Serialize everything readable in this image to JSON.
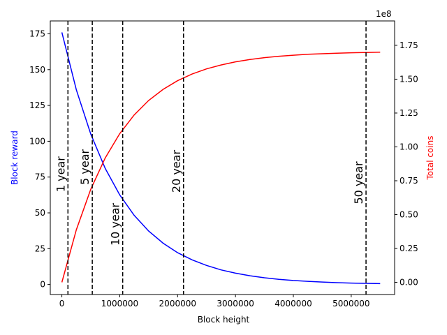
{
  "chart_data": {
    "type": "line",
    "xlabel": "Block height",
    "ylabel_left": "Block reward",
    "ylabel_right": "Total coins",
    "right_axis_multiplier": "1e8",
    "xlim": [
      -200000,
      5750000
    ],
    "ylim_left": [
      -7,
      184
    ],
    "ylim_right": [
      -9000000,
      193000000
    ],
    "x_ticks": [
      0,
      1000000,
      2000000,
      3000000,
      4000000,
      5000000
    ],
    "x_tick_labels": [
      "0",
      "1000000",
      "2000000",
      "3000000",
      "4000000",
      "5000000"
    ],
    "y_left_ticks": [
      0,
      25,
      50,
      75,
      100,
      125,
      150,
      175
    ],
    "y_left_tick_labels": [
      "0",
      "25",
      "50",
      "75",
      "100",
      "125",
      "150",
      "175"
    ],
    "y_right_ticks": [
      0,
      25000000,
      50000000,
      75000000,
      100000000,
      125000000,
      150000000,
      175000000
    ],
    "y_right_tick_labels": [
      "0.00",
      "0.25",
      "0.50",
      "0.75",
      "1.00",
      "1.25",
      "1.50",
      "1.75"
    ],
    "grid": false,
    "colors": {
      "reward": "#0000ff",
      "total": "#ff0000",
      "markers": "#000000"
    },
    "series": [
      {
        "axis": "left",
        "x": [
          0,
          250000,
          500000,
          750000,
          1000000,
          1250000,
          1500000,
          1750000,
          2000000,
          2250000,
          2500000,
          2750000,
          3000000,
          3250000,
          3500000,
          3750000,
          4000000,
          4250000,
          4500000,
          4750000,
          5000000,
          5250000,
          5500000
        ],
        "values": [
          176,
          135.9,
          104.9,
          81.0,
          62.6,
          48.3,
          37.3,
          28.8,
          22.2,
          17.2,
          13.3,
          10.2,
          7.9,
          6.1,
          4.7,
          3.6,
          2.8,
          2.2,
          1.7,
          1.3,
          1.0,
          0.8,
          0.6
        ]
      },
      {
        "axis": "right",
        "x": [
          0,
          250000,
          500000,
          750000,
          1000000,
          1250000,
          1500000,
          1750000,
          2000000,
          2250000,
          2500000,
          2750000,
          3000000,
          3250000,
          3500000,
          3750000,
          4000000,
          4250000,
          4500000,
          4750000,
          5000000,
          5250000,
          5500000
        ],
        "values": [
          0,
          38800000,
          68800000,
          91900000,
          109800000,
          123600000,
          134300000,
          142500000,
          148900000,
          153800000,
          157600000,
          160500000,
          162800000,
          164500000,
          165900000,
          166900000,
          167700000,
          168400000,
          168800000,
          169200000,
          169500000,
          169700000,
          169900000
        ]
      }
    ],
    "markers": [
      {
        "x": 105120,
        "label": "1 year",
        "label_y": 77
      },
      {
        "x": 525600,
        "label": "5 year",
        "label_y": 82
      },
      {
        "x": 1051200,
        "label": "10 year",
        "label_y": 42
      },
      {
        "x": 2102400,
        "label": "20 year",
        "label_y": 79
      },
      {
        "x": 5256000,
        "label": "50 year",
        "label_y": 71
      }
    ]
  }
}
